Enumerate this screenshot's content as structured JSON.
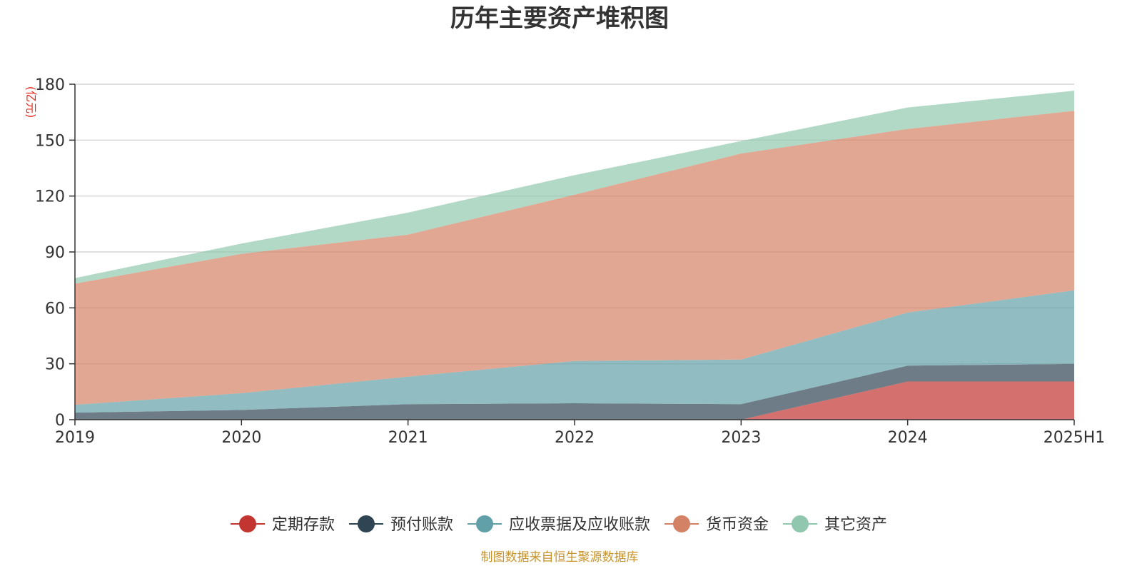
{
  "chart_data": {
    "type": "area",
    "stacked": true,
    "title": "历年主要资产堆积图",
    "y_unit": "(亿元)",
    "categories": [
      "2019",
      "2020",
      "2021",
      "2022",
      "2023",
      "2024",
      "2025H1"
    ],
    "ylim": [
      0,
      180
    ],
    "yticks": [
      0,
      30,
      60,
      90,
      120,
      150,
      180
    ],
    "grid": true,
    "legend_position": "bottom",
    "series": [
      {
        "name": "定期存款",
        "color": "#c23531",
        "values": [
          0,
          0,
          0,
          0,
          0,
          20.5,
          20.5
        ]
      },
      {
        "name": "预付账款",
        "color": "#2f4554",
        "values": [
          3.8,
          5.2,
          8.3,
          8.8,
          8.3,
          8.5,
          9.4
        ]
      },
      {
        "name": "应收票据及应收账款",
        "color": "#61a0a8",
        "values": [
          4.2,
          9.0,
          14.8,
          22.7,
          24.0,
          28.5,
          39.5
        ]
      },
      {
        "name": "货币资金",
        "color": "#d48265",
        "values": [
          65.0,
          74.8,
          76.2,
          89.2,
          110.5,
          98.5,
          96.3
        ]
      },
      {
        "name": "其它资产",
        "color": "#91c7ae",
        "values": [
          3.0,
          5.5,
          11.8,
          10.5,
          6.7,
          11.5,
          10.8
        ]
      }
    ],
    "source": "制图数据来自恒生聚源数据库"
  }
}
